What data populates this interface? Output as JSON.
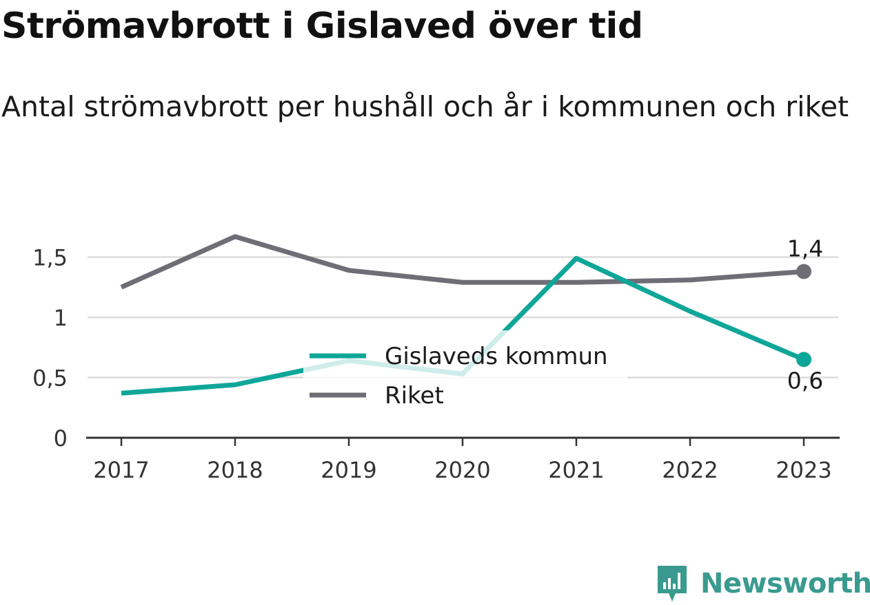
{
  "title": "Strömavbrott i Gislaved över tid",
  "subtitle": "Antal strömavbrott per hushåll och år i kommunen och riket",
  "brand": {
    "name": "Newsworthy",
    "icon": "newsworthy-logo-icon",
    "color": "#3a9a90"
  },
  "chart_data": {
    "type": "line",
    "x": [
      "2017",
      "2018",
      "2019",
      "2020",
      "2021",
      "2022",
      "2023"
    ],
    "series": [
      {
        "name": "Gislaveds kommun",
        "color": "#0ea698",
        "values": [
          0.37,
          0.44,
          0.64,
          0.53,
          1.49,
          1.05,
          0.65
        ],
        "end_label": "0,6"
      },
      {
        "name": "Riket",
        "color": "#6f6e76",
        "values": [
          1.25,
          1.67,
          1.39,
          1.29,
          1.29,
          1.31,
          1.38
        ],
        "end_label": "1,4"
      }
    ],
    "yticks": [
      {
        "value": 0,
        "label": "0"
      },
      {
        "value": 0.5,
        "label": "0,5"
      },
      {
        "value": 1,
        "label": "1"
      },
      {
        "value": 1.5,
        "label": "1,5"
      }
    ],
    "ylim": [
      0,
      1.75
    ],
    "grid": true,
    "legend_position": "center"
  }
}
